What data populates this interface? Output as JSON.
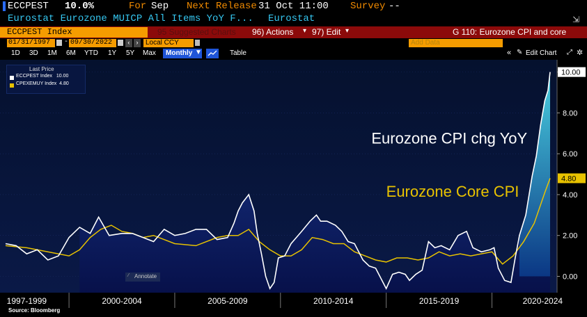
{
  "header": {
    "ticker": "ECCPEST",
    "value": "10.0%",
    "for_label": "For",
    "for_value": "Sep",
    "next_release_label": "Next Release",
    "next_release_value": "31 Oct 11:00",
    "survey_label": "Survey",
    "survey_value": "--",
    "description": "Eurostat Eurozone MUICP All Items YoY F...",
    "source": "Eurostat"
  },
  "redbar": {
    "index_field": "ECCPEST Index",
    "suggested": "95 Suggested Charts",
    "actions": "96) Actions",
    "edit": "97) Edit",
    "chart_title": "G 110: Eurozone CPI and core"
  },
  "datebar": {
    "start": "01/31/1997",
    "end": "09/30/2022",
    "currency": "Local CCY",
    "add_data": "Add Data"
  },
  "toolbar": {
    "ranges": [
      "1D",
      "3D",
      "1M",
      "6M",
      "YTD",
      "1Y",
      "5Y",
      "Max"
    ],
    "frequency": "Monthly",
    "table": "Table",
    "edit_chart": "Edit Chart"
  },
  "legend": {
    "title": "Last Price",
    "items": [
      "ECCPEST Index   10.00",
      "CPEXEMUY Index  4.80"
    ]
  },
  "annotate": "Annotate",
  "source_note": "Source: Bloomberg",
  "colors": {
    "cpi": "#ffffff",
    "core": "#e8c200",
    "fill": "#0b1f6e"
  },
  "chart_data": {
    "type": "line",
    "title": "",
    "xlabel": "",
    "ylabel": "",
    "ylim": [
      -0.8,
      10.6
    ],
    "y_ticks": [
      "10.00",
      "8.00",
      "6.00",
      "4.00",
      "2.00",
      "0.00"
    ],
    "y_tick_values": [
      10,
      8,
      6,
      4,
      2,
      0
    ],
    "x_range": [
      1997.0,
      2022.75
    ],
    "x_labels": [
      "1997-1999",
      "2000-2004",
      "2005-2009",
      "2010-2014",
      "2015-2019",
      "2020-2024"
    ],
    "x_label_centers": [
      1998.0,
      2002.5,
      2007.5,
      2012.5,
      2017.5,
      2022.4
    ],
    "x_boundaries": [
      2000,
      2005,
      2010,
      2015,
      2020
    ],
    "annotations": [
      {
        "text": "Eurozone CPI chg YoY",
        "x": 2014.3,
        "y": 6.5,
        "color": "#ffffff"
      },
      {
        "text": "Eurozone Core CPI",
        "x": 2015.0,
        "y": 3.9,
        "color": "#e8c200"
      }
    ],
    "series": [
      {
        "name": "ECCPEST Index",
        "label": "Eurozone CPI chg YoY",
        "last": "10.00",
        "x": [
          1997.0,
          1997.5,
          1998.0,
          1998.5,
          1999.0,
          1999.5,
          2000.0,
          2000.5,
          2001.0,
          2001.4,
          2001.9,
          2002.5,
          2003.0,
          2003.5,
          2004.0,
          2004.5,
          2005.0,
          2005.5,
          2006.0,
          2006.5,
          2007.0,
          2007.5,
          2007.8,
          2008.0,
          2008.2,
          2008.5,
          2008.75,
          2008.9,
          2009.1,
          2009.3,
          2009.5,
          2009.7,
          2009.9,
          2010.2,
          2010.5,
          2011.0,
          2011.4,
          2011.7,
          2011.9,
          2012.2,
          2012.6,
          2012.9,
          2013.2,
          2013.5,
          2013.9,
          2014.2,
          2014.5,
          2014.8,
          2015.0,
          2015.3,
          2015.6,
          2015.9,
          2016.1,
          2016.4,
          2016.7,
          2017.0,
          2017.3,
          2017.6,
          2018.0,
          2018.4,
          2018.8,
          2019.1,
          2019.5,
          2019.9,
          2020.1,
          2020.3,
          2020.6,
          2020.9,
          2021.1,
          2021.3,
          2021.6,
          2021.9,
          2022.1,
          2022.3,
          2022.5,
          2022.65,
          2022.75
        ],
        "y": [
          1.6,
          1.5,
          1.1,
          1.3,
          0.8,
          1.0,
          1.9,
          2.4,
          2.1,
          2.9,
          2.0,
          2.1,
          2.1,
          1.9,
          1.7,
          2.3,
          2.0,
          2.1,
          2.3,
          2.3,
          1.8,
          1.9,
          2.6,
          3.2,
          3.6,
          4.0,
          3.2,
          2.1,
          1.1,
          0.0,
          -0.6,
          -0.3,
          0.9,
          1.0,
          1.6,
          2.2,
          2.7,
          3.0,
          2.7,
          2.7,
          2.5,
          2.2,
          1.7,
          1.6,
          0.8,
          0.5,
          0.4,
          -0.2,
          -0.6,
          0.1,
          0.2,
          0.1,
          -0.2,
          0.1,
          0.3,
          1.7,
          1.4,
          1.5,
          1.3,
          2.0,
          2.2,
          1.4,
          1.2,
          1.3,
          1.4,
          0.4,
          -0.2,
          -0.3,
          0.9,
          2.0,
          3.0,
          4.9,
          5.9,
          7.4,
          8.6,
          9.1,
          10.0
        ]
      },
      {
        "name": "CPEXEMUY Index",
        "label": "Eurozone Core CPI",
        "last": "4.80",
        "x": [
          1997.0,
          1998.0,
          1999.0,
          2000.0,
          2000.5,
          2001.0,
          2001.5,
          2002.0,
          2002.5,
          2003.0,
          2003.5,
          2004.0,
          2005.0,
          2006.0,
          2007.0,
          2007.5,
          2008.0,
          2008.5,
          2009.0,
          2009.5,
          2010.0,
          2010.5,
          2011.0,
          2011.5,
          2012.0,
          2012.5,
          2013.0,
          2013.5,
          2014.0,
          2014.5,
          2015.0,
          2015.5,
          2016.0,
          2016.5,
          2017.0,
          2017.5,
          2018.0,
          2018.5,
          2019.0,
          2019.5,
          2020.0,
          2020.5,
          2021.0,
          2021.5,
          2022.0,
          2022.5,
          2022.75
        ],
        "y": [
          1.5,
          1.4,
          1.2,
          1.0,
          1.3,
          1.9,
          2.3,
          2.5,
          2.2,
          2.1,
          1.9,
          2.0,
          1.6,
          1.5,
          1.9,
          2.0,
          2.0,
          2.3,
          1.7,
          1.3,
          1.0,
          1.0,
          1.3,
          1.9,
          1.8,
          1.6,
          1.6,
          1.2,
          1.0,
          0.8,
          0.7,
          0.9,
          0.9,
          0.8,
          0.9,
          1.2,
          1.0,
          1.1,
          1.0,
          1.1,
          1.2,
          0.6,
          1.0,
          1.7,
          2.6,
          4.1,
          4.8
        ]
      }
    ]
  }
}
